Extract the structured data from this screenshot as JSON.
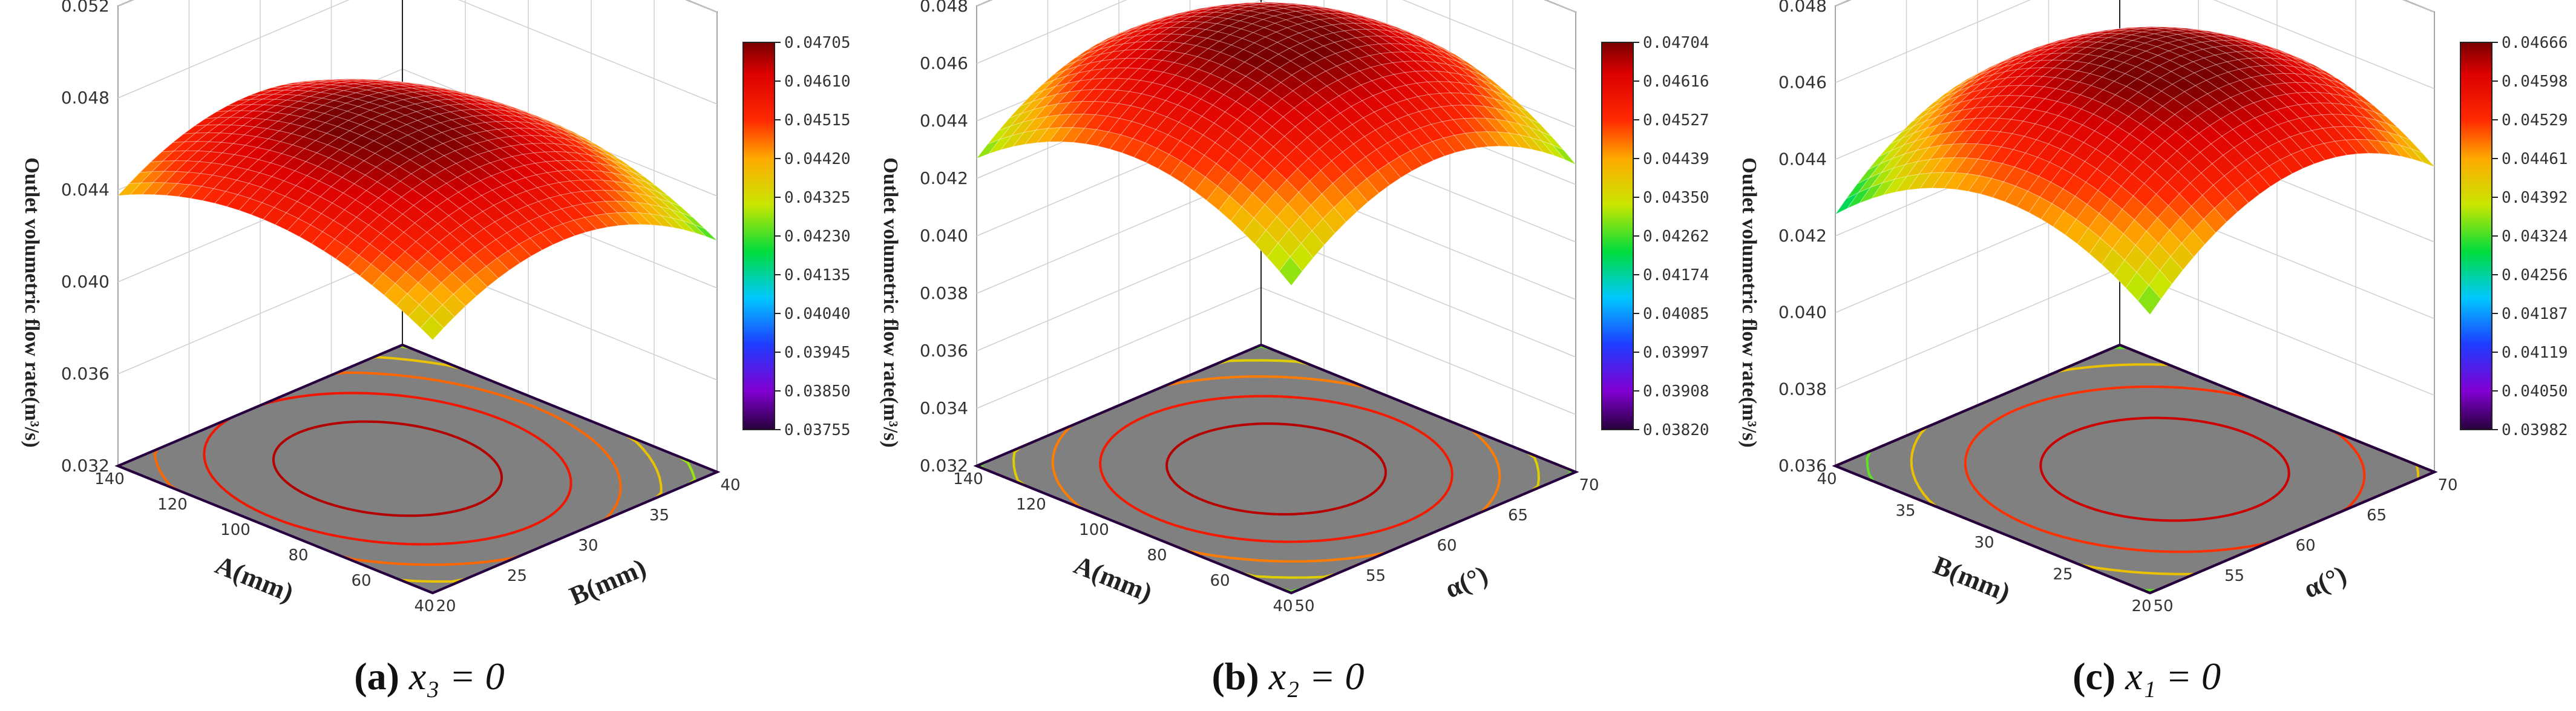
{
  "chart_data": [
    {
      "type": "surface3d",
      "caption_label": "(a)",
      "caption_eq": "x₃ = 0",
      "xlabel": "A(mm)",
      "ylabel": "B(mm)",
      "zlabel": "Outlet volumetric flow rate(m³/s)",
      "x_ticks": [
        "40",
        "60",
        "80",
        "100",
        "120",
        "140"
      ],
      "y_ticks": [
        "20",
        "25",
        "30",
        "35",
        "40"
      ],
      "z_ticks": [
        "0.032",
        "0.036",
        "0.040",
        "0.044",
        "0.048",
        "0.052"
      ],
      "zlim": [
        0.032,
        0.052
      ],
      "surface": {
        "peak_u": 0.55,
        "peak_v": 0.45,
        "peak_z": 0.0472,
        "curv_u": 0.0075,
        "curv_v": 0.0095
      },
      "colorbar": [
        "0.04705",
        "0.04610",
        "0.04515",
        "0.04420",
        "0.04325",
        "0.04230",
        "0.04135",
        "0.04040",
        "0.03945",
        "0.03850",
        "0.03755"
      ],
      "colorbar_range": [
        0.03755,
        0.04705
      ]
    },
    {
      "type": "surface3d",
      "caption_label": "(b)",
      "caption_eq": "x₂ = 0",
      "xlabel": "A(mm)",
      "ylabel": "α(°)",
      "zlabel": "Outlet volumetric flow rate(m³/s)",
      "x_ticks": [
        "40",
        "60",
        "80",
        "100",
        "120",
        "140"
      ],
      "y_ticks": [
        "50",
        "55",
        "60",
        "65",
        "70"
      ],
      "z_ticks": [
        "0.032",
        "0.034",
        "0.036",
        "0.038",
        "0.040",
        "0.042",
        "0.044",
        "0.046",
        "0.048"
      ],
      "zlim": [
        0.032,
        0.048
      ],
      "surface": {
        "peak_u": 0.5,
        "peak_v": 0.5,
        "peak_z": 0.0472,
        "curv_u": 0.009,
        "curv_v": 0.009
      },
      "colorbar": [
        "0.04704",
        "0.04616",
        "0.04527",
        "0.04439",
        "0.04350",
        "0.04262",
        "0.04174",
        "0.04085",
        "0.03997",
        "0.03908",
        "0.03820"
      ],
      "colorbar_range": [
        0.0382,
        0.04704
      ]
    },
    {
      "type": "surface3d",
      "caption_label": "(c)",
      "caption_eq": "x₁ = 0",
      "xlabel": "B(mm)",
      "ylabel": "α(°)",
      "zlabel": "Outlet volumetric flow rate(m³/s)",
      "x_ticks": [
        "20",
        "25",
        "30",
        "35",
        "40"
      ],
      "y_ticks": [
        "50",
        "55",
        "60",
        "65",
        "70"
      ],
      "z_ticks": [
        "0.036",
        "0.038",
        "0.040",
        "0.042",
        "0.044",
        "0.046",
        "0.048"
      ],
      "zlim": [
        0.036,
        0.048
      ],
      "surface": {
        "peak_u": 0.45,
        "peak_v": 0.55,
        "peak_z": 0.0468,
        "curv_u": 0.007,
        "curv_v": 0.007
      },
      "colorbar": [
        "0.04666",
        "0.04598",
        "0.04529",
        "0.04461",
        "0.04392",
        "0.04324",
        "0.04256",
        "0.04187",
        "0.04119",
        "0.04050",
        "0.03982"
      ],
      "colorbar_range": [
        0.03982,
        0.04666
      ]
    }
  ]
}
